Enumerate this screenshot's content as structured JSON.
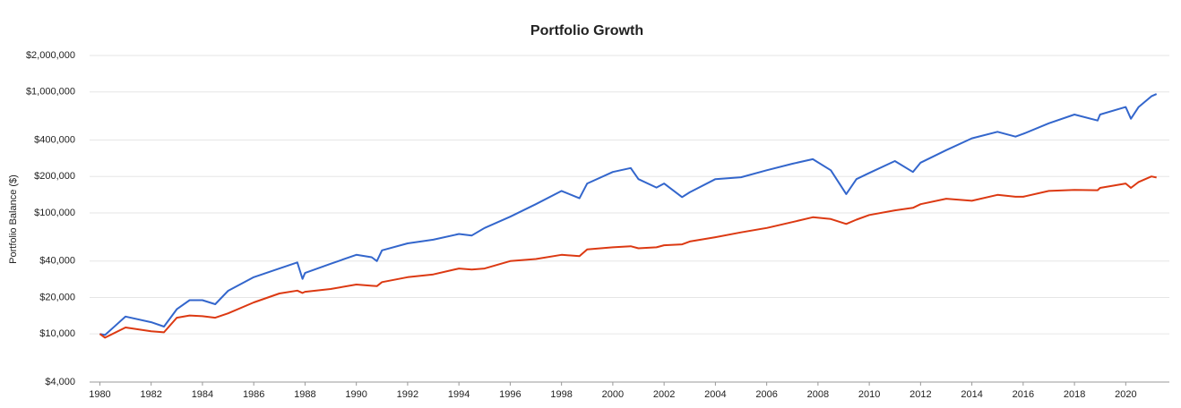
{
  "chart_data": {
    "type": "line",
    "title": "Portfolio Growth",
    "ylabel": "Portfolio Balance ($)",
    "log_scale": true,
    "grid": true,
    "xlim": [
      1979.6,
      2021.7
    ],
    "xticks": [
      1980,
      1982,
      1984,
      1986,
      1988,
      1990,
      1992,
      1994,
      1996,
      1998,
      2000,
      2002,
      2004,
      2006,
      2008,
      2010,
      2012,
      2014,
      2016,
      2018,
      2020
    ],
    "ylim": [
      4000,
      2000000
    ],
    "yticks": [
      {
        "value": 4000,
        "label": "$4,000"
      },
      {
        "value": 10000,
        "label": "$10,000"
      },
      {
        "value": 20000,
        "label": "$20,000"
      },
      {
        "value": 40000,
        "label": "$40,000"
      },
      {
        "value": 100000,
        "label": "$100,000"
      },
      {
        "value": 200000,
        "label": "$200,000"
      },
      {
        "value": 400000,
        "label": "$400,000"
      },
      {
        "value": 1000000,
        "label": "$1,000,000"
      },
      {
        "value": 2000000,
        "label": "$2,000,000"
      }
    ],
    "x": [
      1980,
      1980.2,
      1981,
      1982,
      1982.5,
      1983,
      1983.5,
      1984,
      1984.5,
      1985,
      1986,
      1987,
      1987.7,
      1987.9,
      1988,
      1989,
      1990,
      1990.6,
      1990.8,
      1991,
      1992,
      1993,
      1994,
      1994.5,
      1995,
      1996,
      1997,
      1998,
      1998.7,
      1999,
      2000,
      2000.7,
      2001,
      2001.7,
      2002,
      2002.7,
      2003,
      2004,
      2005,
      2006,
      2007,
      2007.8,
      2008.5,
      2009.1,
      2009.5,
      2010,
      2011,
      2011.7,
      2012,
      2013,
      2014,
      2015,
      2015.7,
      2016,
      2017,
      2018,
      2018.9,
      2019,
      2020,
      2020.2,
      2020.5,
      2021,
      2021.2
    ],
    "series": [
      {
        "color": "#3366cc",
        "values": [
          10000,
          9800,
          13900,
          12500,
          11500,
          16000,
          19000,
          19000,
          17600,
          22700,
          29400,
          34700,
          39000,
          28500,
          31900,
          38000,
          45000,
          43000,
          40000,
          49000,
          56000,
          60000,
          67000,
          65000,
          75000,
          93000,
          118000,
          152000,
          132000,
          175000,
          218000,
          235000,
          190000,
          162000,
          175000,
          135000,
          148000,
          190000,
          197000,
          225000,
          255000,
          278000,
          225000,
          143000,
          190000,
          214000,
          268000,
          218000,
          260000,
          330000,
          413000,
          468000,
          427000,
          450000,
          550000,
          650000,
          580000,
          650000,
          750000,
          600000,
          750000,
          920000,
          960000
        ]
      },
      {
        "color": "#dc3912",
        "values": [
          10000,
          9300,
          11300,
          10500,
          10300,
          13600,
          14200,
          14000,
          13600,
          14800,
          18200,
          21600,
          22800,
          21800,
          22300,
          23500,
          25600,
          25000,
          24800,
          26800,
          29400,
          31000,
          34700,
          34000,
          34700,
          40000,
          41600,
          45000,
          44000,
          50000,
          52000,
          53000,
          51000,
          52000,
          54000,
          55000,
          58000,
          63000,
          69000,
          75000,
          84000,
          92000,
          89000,
          81000,
          88000,
          96000,
          105000,
          110000,
          118000,
          131000,
          126000,
          141000,
          136000,
          136000,
          152000,
          155000,
          154000,
          161000,
          175000,
          161000,
          180000,
          200000,
          196000
        ]
      }
    ]
  }
}
